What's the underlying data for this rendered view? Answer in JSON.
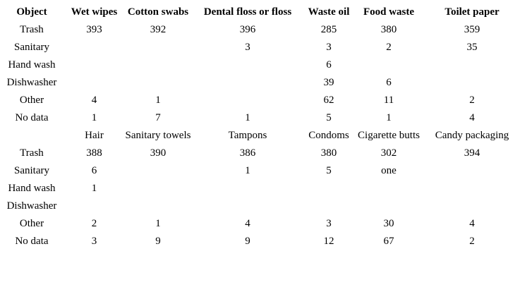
{
  "page": {
    "background": "#ffffff",
    "text_color": "#000000"
  },
  "table": {
    "header_row": [
      "Object",
      "Wet wipes",
      "Cotton swabs",
      "Dental floss or floss",
      "Waste oil",
      "Food waste",
      "Toilet paper"
    ],
    "sections": [
      {
        "header": null,
        "rows": [
          {
            "label": "Trash",
            "values": [
              "393",
              "392",
              "396",
              "285",
              "380",
              "359"
            ]
          },
          {
            "label": "Sanitary",
            "values": [
              "",
              "",
              "3",
              "3",
              "2",
              "35"
            ]
          },
          {
            "label": "Hand wash",
            "values": [
              "",
              "",
              "",
              "6",
              "",
              ""
            ]
          },
          {
            "label": "Dishwasher",
            "values": [
              "",
              "",
              "",
              "39",
              "6",
              ""
            ]
          },
          {
            "label": "Other",
            "values": [
              "4",
              "1",
              "",
              "62",
              "11",
              "2"
            ]
          },
          {
            "label": "No data",
            "values": [
              "1",
              "7",
              "1",
              "5",
              "1",
              "4"
            ]
          }
        ]
      },
      {
        "header": [
          "",
          "Hair",
          "Sanitary towels",
          "Tampons",
          "Condoms",
          "Cigarette butts",
          "Candy packaging"
        ],
        "rows": [
          {
            "label": "Trash",
            "values": [
              "388",
              "390",
              "386",
              "380",
              "302",
              "394"
            ]
          },
          {
            "label": "Sanitary",
            "values": [
              "6",
              "",
              "1",
              "5",
              "one",
              ""
            ]
          },
          {
            "label": "Hand wash",
            "values": [
              "1",
              "",
              "",
              "",
              "",
              ""
            ]
          },
          {
            "label": "Dishwasher",
            "values": [
              "",
              "",
              "",
              "",
              "",
              ""
            ]
          },
          {
            "label": "Other",
            "values": [
              "2",
              "1",
              "4",
              "3",
              "30",
              "4"
            ]
          },
          {
            "label": "No data",
            "values": [
              "3",
              "9",
              "9",
              "12",
              "67",
              "2"
            ]
          }
        ]
      }
    ]
  },
  "chart_data": {
    "type": "table",
    "title": "",
    "row_labels": [
      "Trash",
      "Sanitary",
      "Hand wash",
      "Dishwasher",
      "Other",
      "No data"
    ],
    "groups": [
      {
        "categories": [
          "Wet wipes",
          "Cotton swabs",
          "Dental floss or floss",
          "Waste oil",
          "Food waste",
          "Toilet paper"
        ],
        "rows": [
          {
            "label": "Trash",
            "values": [
              393,
              392,
              396,
              285,
              380,
              359
            ]
          },
          {
            "label": "Sanitary",
            "values": [
              null,
              null,
              3,
              3,
              2,
              35
            ]
          },
          {
            "label": "Hand wash",
            "values": [
              null,
              null,
              null,
              6,
              null,
              null
            ]
          },
          {
            "label": "Dishwasher",
            "values": [
              null,
              null,
              null,
              39,
              6,
              null
            ]
          },
          {
            "label": "Other",
            "values": [
              4,
              1,
              null,
              62,
              11,
              2
            ]
          },
          {
            "label": "No data",
            "values": [
              1,
              7,
              1,
              5,
              1,
              4
            ]
          }
        ]
      },
      {
        "categories": [
          "Hair",
          "Sanitary towels",
          "Tampons",
          "Condoms",
          "Cigarette butts",
          "Candy packaging"
        ],
        "rows": [
          {
            "label": "Trash",
            "values": [
              388,
              390,
              386,
              380,
              302,
              394
            ]
          },
          {
            "label": "Sanitary",
            "values": [
              6,
              null,
              1,
              5,
              "one",
              null
            ]
          },
          {
            "label": "Hand wash",
            "values": [
              1,
              null,
              null,
              null,
              null,
              null
            ]
          },
          {
            "label": "Dishwasher",
            "values": [
              null,
              null,
              null,
              null,
              null,
              null
            ]
          },
          {
            "label": "Other",
            "values": [
              2,
              1,
              4,
              3,
              30,
              4
            ]
          },
          {
            "label": "No data",
            "values": [
              3,
              9,
              9,
              12,
              67,
              2
            ]
          }
        ]
      }
    ]
  }
}
